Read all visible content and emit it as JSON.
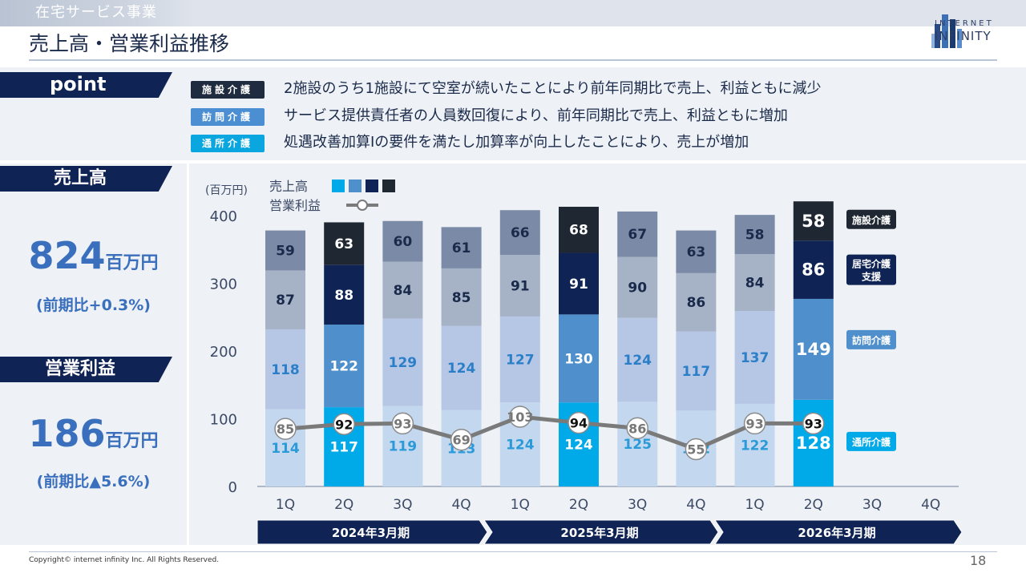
{
  "header": {
    "section": "在宅サービス事業",
    "title": "売上高・営業利益推移",
    "logo_line1": "INTERNET",
    "logo_line2": "INFINITY"
  },
  "point": {
    "label": "point",
    "items": [
      {
        "tag": "施設介護",
        "color": "#1f2b3e",
        "text": "2施設のうち1施設にて空室が続いたことにより前年同期比で売上、利益ともに減少"
      },
      {
        "tag": "訪問介護",
        "color": "#4b8fd2",
        "text": "サービス提供責任者の人員数回復により、前年同期比で売上、利益ともに増加"
      },
      {
        "tag": "通所介護",
        "color": "#0aa6e0",
        "text": "処遇改善加算Ⅰの要件を満たし加算率が向上したことにより、売上が増加"
      }
    ]
  },
  "kpi": {
    "sales_label": "売上高",
    "sales_value": "824",
    "sales_unit": "百万円",
    "sales_change": "(前期比+0.3%)",
    "profit_label": "営業利益",
    "profit_value": "186",
    "profit_unit": "百万円",
    "profit_change": "(前期比▲5.6%)"
  },
  "chart_data": {
    "type": "bar",
    "unit_label": "(百万円)",
    "legend": {
      "sales": "売上高",
      "profit": "営業利益"
    },
    "ylim": [
      0,
      400
    ],
    "yticks": [
      0,
      100,
      200,
      300,
      400
    ],
    "categories": [
      "1Q",
      "2Q",
      "3Q",
      "4Q",
      "1Q",
      "2Q",
      "3Q",
      "4Q",
      "1Q",
      "2Q",
      "3Q",
      "4Q"
    ],
    "periods": [
      "2024年3月期",
      "2025年3月期",
      "2026年3月期"
    ],
    "series": [
      {
        "name": "通所介護",
        "values": [
          114,
          117,
          119,
          113,
          124,
          124,
          125,
          112,
          122,
          128,
          null,
          null
        ]
      },
      {
        "name": "訪問介護",
        "values": [
          118,
          122,
          129,
          124,
          127,
          130,
          124,
          117,
          137,
          149,
          null,
          null
        ]
      },
      {
        "name": "居宅介護\n支援",
        "values": [
          87,
          88,
          84,
          85,
          91,
          91,
          90,
          86,
          84,
          86,
          null,
          null
        ]
      },
      {
        "name": "施設介護",
        "values": [
          59,
          63,
          60,
          61,
          66,
          68,
          67,
          63,
          58,
          58,
          null,
          null
        ]
      }
    ],
    "profit": {
      "name": "営業利益",
      "values": [
        85,
        92,
        93,
        69,
        103,
        94,
        86,
        55,
        93,
        93,
        null,
        null
      ]
    },
    "colors": {
      "normal": [
        "#c3d8ef",
        "#b6c6e5",
        "#a6b2c6",
        "#7a8aa7"
      ],
      "highlight": [
        "#00a9e8",
        "#4f8fcc",
        "#0f2454",
        "#1f2733"
      ],
      "text_normal": [
        "#2a9ad8",
        "#2a7fc8",
        "#1a2a4a",
        "#1a2a4a"
      ],
      "text_highlight": [
        "#ffffff",
        "#ffffff",
        "#ffffff",
        "#ffffff"
      ],
      "line": "#7a7a7a",
      "period_bar": "#0f2454"
    }
  },
  "footer": {
    "copyright": "Copyright© internet infinity Inc. All Rights Reserved.",
    "page": "18"
  }
}
